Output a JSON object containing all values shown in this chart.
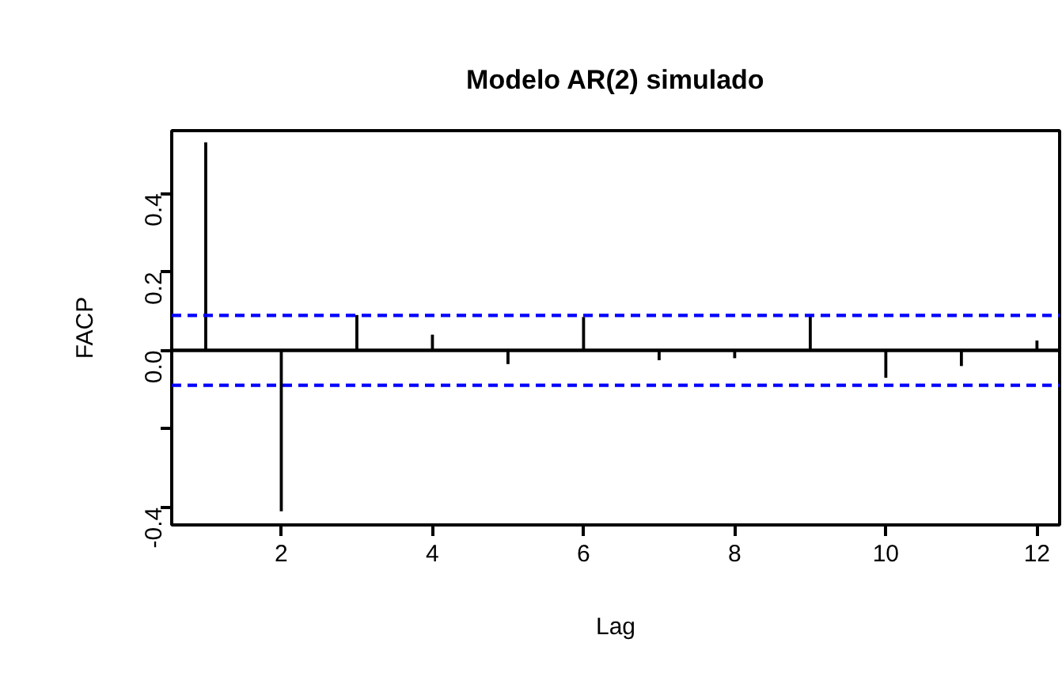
{
  "chart_data": {
    "type": "bar",
    "title": "Modelo AR(2) simulado",
    "xlabel": "Lag",
    "ylabel": "FACP",
    "x": [
      1,
      2,
      3,
      4,
      5,
      6,
      7,
      8,
      9,
      10,
      11,
      12
    ],
    "values": [
      0.53,
      -0.41,
      0.09,
      0.04,
      -0.035,
      0.085,
      -0.025,
      -0.02,
      0.09,
      -0.07,
      -0.04,
      0.025
    ],
    "color": "#000000",
    "xlim": [
      0.55,
      12.3
    ],
    "ylim": [
      -0.445,
      0.56
    ],
    "xticks": [
      2,
      4,
      6,
      8,
      10,
      12
    ],
    "yticks": [
      -0.4,
      {
        "value": -0.2,
        "label": null
      },
      {
        "value": 0,
        "label": "0.0"
      },
      0.2,
      0.4
    ],
    "ref_lines": [
      {
        "axis": "y",
        "value": 0,
        "color": "#000000",
        "line_style": "solid"
      },
      {
        "axis": "y",
        "value": 0.089,
        "color": "#0000ff",
        "line_style": "dashed"
      },
      {
        "axis": "y",
        "value": -0.089,
        "color": "#0000ff",
        "line_style": "dashed"
      }
    ],
    "grid": false
  }
}
